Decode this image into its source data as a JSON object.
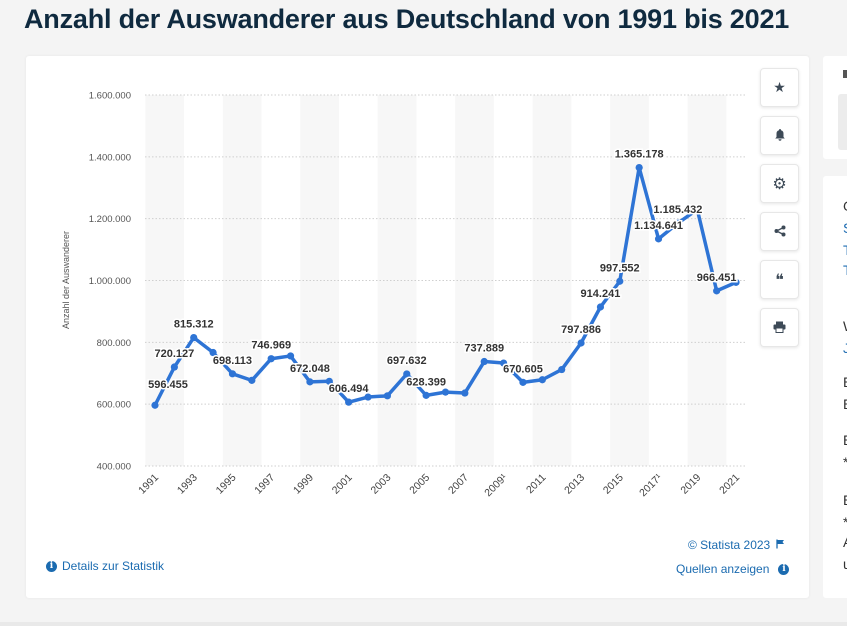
{
  "page": {
    "title": "Anzahl der Auswanderer aus Deutschland von 1991 bis 2021"
  },
  "toolbar": {
    "buttons": [
      {
        "name": "favorite",
        "icon": "star-icon",
        "glyph": "★"
      },
      {
        "name": "notify",
        "icon": "bell-icon",
        "glyph": "🔔"
      },
      {
        "name": "settings",
        "icon": "gear-icon",
        "glyph": "⚙"
      },
      {
        "name": "share",
        "icon": "share-icon",
        "glyph": "⋖"
      },
      {
        "name": "cite",
        "icon": "quote-icon",
        "glyph": "❝"
      },
      {
        "name": "print",
        "icon": "print-icon",
        "glyph": "⎙"
      }
    ]
  },
  "footer": {
    "details_link": "Details zur Statistik",
    "copyright": "© Statista 2023",
    "sources_link": "Quellen anzeigen"
  },
  "right_panel": {
    "lines": [
      "G",
      "S",
      "T",
      "T",
      "W",
      "J",
      "E",
      "E",
      "E",
      "*",
      "E",
      "*",
      "A",
      "u"
    ]
  },
  "chart_data": {
    "type": "line",
    "title": "Anzahl der Auswanderer aus Deutschland von 1991 bis 2021",
    "xlabel": "",
    "ylabel": "Anzahl der Auswanderer",
    "ylim": [
      400000,
      1600000
    ],
    "yticks": [
      400000,
      600000,
      800000,
      1000000,
      1200000,
      1400000,
      1600000
    ],
    "ytick_labels": [
      "400.000",
      "600.000",
      "800.000",
      "1.000.000",
      "1.200.000",
      "1.400.000",
      "1.600.000"
    ],
    "grid": true,
    "legend": "none",
    "color": "#2e74d5",
    "x": [
      1991,
      1992,
      1993,
      1994,
      1995,
      1996,
      1997,
      1998,
      1999,
      2000,
      2001,
      2002,
      2003,
      2004,
      2005,
      2006,
      2007,
      2008,
      2009,
      2010,
      2011,
      2012,
      2013,
      2014,
      2015,
      2016,
      2017,
      2018,
      2019,
      2020,
      2021
    ],
    "xtick_labels": [
      "1991",
      "1993",
      "1995",
      "1997",
      "1999",
      "2001",
      "2003",
      "2005",
      "2007",
      "2009¹",
      "2011",
      "2013",
      "2015",
      "2017¹",
      "2019",
      "2021"
    ],
    "xtick_years": [
      1991,
      1993,
      1995,
      1997,
      1999,
      2001,
      2003,
      2005,
      2007,
      2009,
      2011,
      2013,
      2015,
      2017,
      2019,
      2021
    ],
    "series": [
      {
        "name": "Auswanderer",
        "values": [
          596455,
          720127,
          815312,
          767000,
          698113,
          677000,
          746969,
          756000,
          672048,
          674000,
          606494,
          623000,
          627000,
          697632,
          628399,
          639000,
          636000,
          737889,
          733000,
          670605,
          679000,
          712000,
          797886,
          914241,
          997552,
          1365178,
          1134641,
          1185432,
          1230000,
          966451,
          994000
        ]
      }
    ],
    "data_labels": [
      {
        "year": 1991,
        "text": "596.455",
        "pos": "below"
      },
      {
        "year": 1992,
        "text": "720.127",
        "pos": "above"
      },
      {
        "year": 1993,
        "text": "815.312",
        "pos": "above"
      },
      {
        "year": 1995,
        "text": "698.113",
        "pos": "above"
      },
      {
        "year": 1997,
        "text": "746.969",
        "pos": "above"
      },
      {
        "year": 1999,
        "text": "672.048",
        "pos": "above"
      },
      {
        "year": 2001,
        "text": "606.494",
        "pos": "above"
      },
      {
        "year": 2004,
        "text": "697.632",
        "pos": "above"
      },
      {
        "year": 2005,
        "text": "628.399",
        "pos": "above"
      },
      {
        "year": 2008,
        "text": "737.889",
        "pos": "above"
      },
      {
        "year": 2010,
        "text": "670.605",
        "pos": "above"
      },
      {
        "year": 2013,
        "text": "797.886",
        "pos": "above"
      },
      {
        "year": 2014,
        "text": "914.241",
        "pos": "above"
      },
      {
        "year": 2015,
        "text": "997.552",
        "pos": "above"
      },
      {
        "year": 2016,
        "text": "1.365.178",
        "pos": "above"
      },
      {
        "year": 2017,
        "text": "1.134.641",
        "pos": "above"
      },
      {
        "year": 2018,
        "text": "1.185.432",
        "pos": "above"
      },
      {
        "year": 2020,
        "text": "966.451",
        "pos": "above"
      }
    ]
  }
}
